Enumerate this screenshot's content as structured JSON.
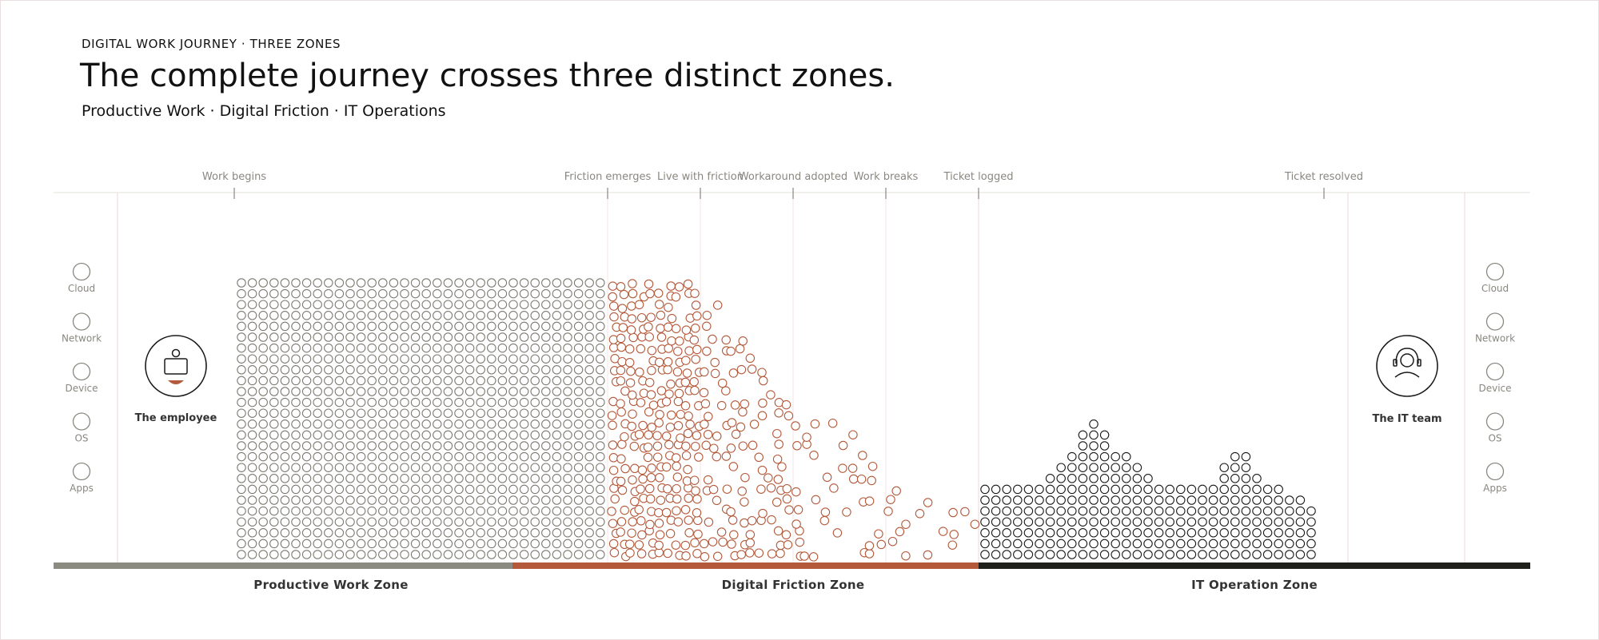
{
  "header": {
    "eyebrow": "DIGITAL WORK JOURNEY  ·  THREE ZONES",
    "title": "The complete journey crosses three distinct zones.",
    "subtitle": "Productive Work · Digital Friction · IT Operations"
  },
  "milestones": [
    {
      "label": "Work begins",
      "key": "work-begins"
    },
    {
      "label": "Friction emerges",
      "key": "friction-emerges"
    },
    {
      "label": "Live with friction",
      "key": "live-with-friction"
    },
    {
      "label": "Workaround adopted",
      "key": "workaround-adopted"
    },
    {
      "label": "Work breaks",
      "key": "work-breaks"
    },
    {
      "label": "Ticket logged",
      "key": "ticket-logged"
    },
    {
      "label": "Ticket resolved",
      "key": "ticket-resolved"
    }
  ],
  "layers": [
    "Cloud",
    "Network",
    "Device",
    "OS",
    "Apps"
  ],
  "actors": {
    "employee": {
      "label": "The employee",
      "icon": "laptop-user-icon"
    },
    "it_team": {
      "label": "The IT team",
      "icon": "headset-agent-icon"
    }
  },
  "zones": [
    {
      "label": "Productive Work Zone",
      "color": "#8c8b82"
    },
    {
      "label": "Digital Friction Zone",
      "color": "#b4593a"
    },
    {
      "label": "IT Operation Zone",
      "color": "#1f1f1c"
    }
  ],
  "colors": {
    "productive_dots": "#7d7a72",
    "friction_dots": "#b4593a",
    "it_dots": "#1a1a1a",
    "guide_line": "#efd6d6",
    "axis_line": "#e3e1d8"
  }
}
